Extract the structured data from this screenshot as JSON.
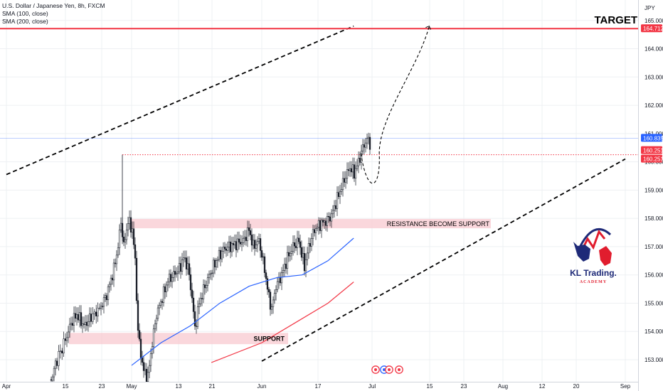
{
  "header": {
    "symbol": "U.S. Dollar / Japanese Yen, 8h, FXCM",
    "sma100": "SMA (100, close)",
    "sma200": "SMA (200, close)",
    "currency": "JPY"
  },
  "annotations": {
    "target": "TARGET",
    "resistance": "RESISTANCE BECOME SUPPORT",
    "support": "SUPPORT"
  },
  "logo": {
    "name": "KL Trading.",
    "sub": "ACADEMY"
  },
  "colors": {
    "bull": "#26a69a",
    "bear": "#ef5350",
    "candle": "#131722",
    "sma100": "#2962ff",
    "sma200": "#f23645",
    "target_line": "#f23645",
    "zone": "#f8c9d0",
    "price_label": "#2962ff",
    "level_label": "#f23645"
  },
  "chart_data": {
    "type": "candlestick",
    "y_ticks": [
      "153.000",
      "154.000",
      "155.000",
      "156.000",
      "157.000",
      "158.000",
      "159.000",
      "160.000",
      "161.000",
      "162.000",
      "163.000",
      "164.000",
      "165.000"
    ],
    "ylim": [
      152.85,
      165.3
    ],
    "x_ticks": [
      "Apr",
      "15",
      "23",
      "May",
      "13",
      "21",
      "Jun",
      "17",
      "Jul",
      "15",
      "23",
      "Aug",
      "12",
      "20",
      "Sep"
    ],
    "price_labels": [
      {
        "value": "164.712",
        "kind": "level"
      },
      {
        "value": "160.835",
        "kind": "price"
      },
      {
        "value": "160.251",
        "kind": "level"
      },
      {
        "value": "160.251",
        "kind": "level"
      }
    ],
    "target_level": 164.712,
    "current_price": 160.835,
    "breakout_level": 160.251,
    "resistance_zone": [
      157.65,
      157.98
    ],
    "support_zone": [
      153.55,
      153.95
    ],
    "sma100_points": [
      [
        "May 1",
        152.8
      ],
      [
        "May 8",
        153.6
      ],
      [
        "May 15",
        154.2
      ],
      [
        "May 22",
        155.0
      ],
      [
        "May 29",
        155.6
      ],
      [
        "Jun 5",
        155.9
      ],
      [
        "Jun 12",
        156.0
      ],
      [
        "Jun 19",
        156.5
      ],
      [
        "Jun 26",
        157.3
      ]
    ],
    "sma200_points": [
      [
        "May 20",
        152.9
      ],
      [
        "Jun 1",
        153.6
      ],
      [
        "Jun 10",
        154.3
      ],
      [
        "Jun 19",
        155.0
      ],
      [
        "Jun 26",
        155.75
      ]
    ],
    "channel_upper": [
      [
        "Apr 1",
        159.55
      ],
      [
        "Jun 26",
        164.8
      ]
    ],
    "channel_lower": [
      [
        "Jun 1",
        152.95
      ],
      [
        "Sep 1",
        160.1
      ]
    ],
    "projection": [
      [
        "Jun 28",
        160.3
      ],
      [
        "Jul 1",
        159.1
      ],
      [
        "Jul 8",
        161.0
      ],
      [
        "Jul 15",
        164.8
      ]
    ]
  }
}
